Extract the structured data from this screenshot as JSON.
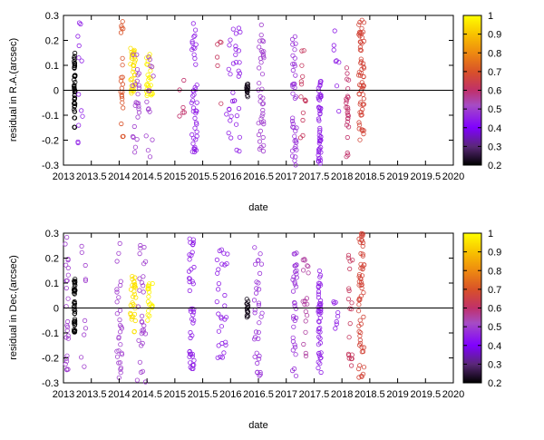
{
  "chart_data": [
    {
      "type": "scatter",
      "xlabel": "date",
      "ylabel": "residual in R.A.(arcsec)",
      "xlim": [
        2013,
        2020
      ],
      "ylim": [
        -0.3,
        0.3
      ],
      "xticks": [
        "2013",
        "2013.5",
        "2014",
        "2014.5",
        "2015",
        "2015.5",
        "2016",
        "2016.5",
        "2017",
        "2017.5",
        "2018",
        "2018.5",
        "2019",
        "2019.5",
        "2020"
      ],
      "yticks": [
        "-0.3",
        "-0.2",
        "-0.1",
        "0",
        "0.1",
        "0.2",
        "0.3"
      ],
      "colorbar": {
        "range": [
          0.2,
          1.0
        ],
        "ticks": [
          "0.2",
          "0.3",
          "0.4",
          "0.5",
          "0.6",
          "0.7",
          "0.8",
          "0.9",
          "1"
        ]
      },
      "grid": false,
      "zero_line": true,
      "marker": "open-circle",
      "clusters": [
        {
          "x": 2013.0,
          "spread": 0.05,
          "c": 0.55,
          "n": 30,
          "ymin": -0.28,
          "ymax": 0.22
        },
        {
          "x": 2013.2,
          "spread": 0.02,
          "c": 0.2,
          "n": 50,
          "ymin": -0.15,
          "ymax": 0.15
        },
        {
          "x": 2013.3,
          "spread": 0.1,
          "c": 0.45,
          "n": 12,
          "ymin": -0.28,
          "ymax": 0.28
        },
        {
          "x": 2014.05,
          "spread": 0.05,
          "c": 0.7,
          "n": 22,
          "ymin": -0.2,
          "ymax": 0.28
        },
        {
          "x": 2014.25,
          "spread": 0.1,
          "c": 0.95,
          "n": 35,
          "ymin": -0.02,
          "ymax": 0.17
        },
        {
          "x": 2014.3,
          "spread": 0.12,
          "c": 0.5,
          "n": 25,
          "ymin": -0.25,
          "ymax": 0.15
        },
        {
          "x": 2014.55,
          "spread": 0.12,
          "c": 0.98,
          "n": 25,
          "ymin": -0.03,
          "ymax": 0.16
        },
        {
          "x": 2014.55,
          "spread": 0.15,
          "c": 0.5,
          "n": 15,
          "ymin": -0.28,
          "ymax": 0.15
        },
        {
          "x": 2015.1,
          "spread": 0.15,
          "c": 0.6,
          "n": 6,
          "ymin": -0.22,
          "ymax": 0.05
        },
        {
          "x": 2015.35,
          "spread": 0.1,
          "c": 0.45,
          "n": 45,
          "ymin": -0.25,
          "ymax": 0.28
        },
        {
          "x": 2015.8,
          "spread": 0.1,
          "c": 0.62,
          "n": 6,
          "ymin": -0.1,
          "ymax": 0.25
        },
        {
          "x": 2016.05,
          "spread": 0.25,
          "c": 0.45,
          "n": 35,
          "ymin": -0.25,
          "ymax": 0.25
        },
        {
          "x": 2016.3,
          "spread": 0.03,
          "c": 0.22,
          "n": 15,
          "ymin": -0.03,
          "ymax": 0.03
        },
        {
          "x": 2016.55,
          "spread": 0.1,
          "c": 0.5,
          "n": 40,
          "ymin": -0.25,
          "ymax": 0.28
        },
        {
          "x": 2017.15,
          "spread": 0.08,
          "c": 0.48,
          "n": 40,
          "ymin": -0.3,
          "ymax": 0.25
        },
        {
          "x": 2017.3,
          "spread": 0.1,
          "c": 0.62,
          "n": 14,
          "ymin": -0.2,
          "ymax": 0.2
        },
        {
          "x": 2017.6,
          "spread": 0.05,
          "c": 0.45,
          "n": 50,
          "ymin": -0.3,
          "ymax": 0.05
        },
        {
          "x": 2017.9,
          "spread": 0.1,
          "c": 0.45,
          "n": 8,
          "ymin": -0.12,
          "ymax": 0.25
        },
        {
          "x": 2018.1,
          "spread": 0.05,
          "c": 0.6,
          "n": 25,
          "ymin": -0.28,
          "ymax": 0.1
        },
        {
          "x": 2018.35,
          "spread": 0.1,
          "c": 0.67,
          "n": 65,
          "ymin": -0.2,
          "ymax": 0.3
        }
      ]
    },
    {
      "type": "scatter",
      "xlabel": "date",
      "ylabel": "residual in Dec.(arcsec)",
      "xlim": [
        2013,
        2020
      ],
      "ylim": [
        -0.3,
        0.3
      ],
      "xticks": [
        "2013",
        "2013.5",
        "2014",
        "2014.5",
        "2015",
        "2015.5",
        "2016",
        "2016.5",
        "2017",
        "2017.5",
        "2018",
        "2018.5",
        "2019",
        "2019.5",
        "2020"
      ],
      "yticks": [
        "-0.3",
        "-0.2",
        "-0.1",
        "0",
        "0.1",
        "0.2",
        "0.3"
      ],
      "colorbar": {
        "range": [
          0.2,
          1.0
        ],
        "ticks": [
          "0.2",
          "0.3",
          "0.4",
          "0.5",
          "0.6",
          "0.7",
          "0.8",
          "0.9",
          "1"
        ]
      },
      "grid": false,
      "zero_line": true,
      "marker": "open-circle",
      "clusters": [
        {
          "x": 2013.05,
          "spread": 0.08,
          "c": 0.5,
          "n": 40,
          "ymin": -0.25,
          "ymax": 0.3
        },
        {
          "x": 2013.2,
          "spread": 0.02,
          "c": 0.2,
          "n": 45,
          "ymin": -0.1,
          "ymax": 0.12
        },
        {
          "x": 2013.35,
          "spread": 0.1,
          "c": 0.5,
          "n": 10,
          "ymin": -0.28,
          "ymax": 0.25
        },
        {
          "x": 2014.0,
          "spread": 0.1,
          "c": 0.5,
          "n": 30,
          "ymin": -0.28,
          "ymax": 0.28
        },
        {
          "x": 2014.25,
          "spread": 0.1,
          "c": 0.95,
          "n": 30,
          "ymin": -0.1,
          "ymax": 0.15
        },
        {
          "x": 2014.4,
          "spread": 0.15,
          "c": 0.5,
          "n": 30,
          "ymin": -0.3,
          "ymax": 0.3
        },
        {
          "x": 2014.55,
          "spread": 0.1,
          "c": 0.98,
          "n": 20,
          "ymin": -0.05,
          "ymax": 0.12
        },
        {
          "x": 2015.3,
          "spread": 0.1,
          "c": 0.45,
          "n": 45,
          "ymin": -0.25,
          "ymax": 0.28
        },
        {
          "x": 2015.85,
          "spread": 0.2,
          "c": 0.45,
          "n": 30,
          "ymin": -0.2,
          "ymax": 0.25
        },
        {
          "x": 2016.3,
          "spread": 0.03,
          "c": 0.22,
          "n": 15,
          "ymin": -0.04,
          "ymax": 0.04
        },
        {
          "x": 2016.5,
          "spread": 0.15,
          "c": 0.48,
          "n": 35,
          "ymin": -0.28,
          "ymax": 0.25
        },
        {
          "x": 2017.15,
          "spread": 0.08,
          "c": 0.48,
          "n": 35,
          "ymin": -0.3,
          "ymax": 0.25
        },
        {
          "x": 2017.35,
          "spread": 0.1,
          "c": 0.55,
          "n": 20,
          "ymin": -0.2,
          "ymax": 0.25
        },
        {
          "x": 2017.6,
          "spread": 0.05,
          "c": 0.45,
          "n": 45,
          "ymin": -0.3,
          "ymax": 0.15
        },
        {
          "x": 2017.9,
          "spread": 0.1,
          "c": 0.45,
          "n": 8,
          "ymin": -0.1,
          "ymax": 0.1
        },
        {
          "x": 2018.15,
          "spread": 0.08,
          "c": 0.62,
          "n": 20,
          "ymin": -0.25,
          "ymax": 0.28
        },
        {
          "x": 2018.35,
          "spread": 0.1,
          "c": 0.67,
          "n": 60,
          "ymin": -0.28,
          "ymax": 0.3
        }
      ]
    }
  ]
}
